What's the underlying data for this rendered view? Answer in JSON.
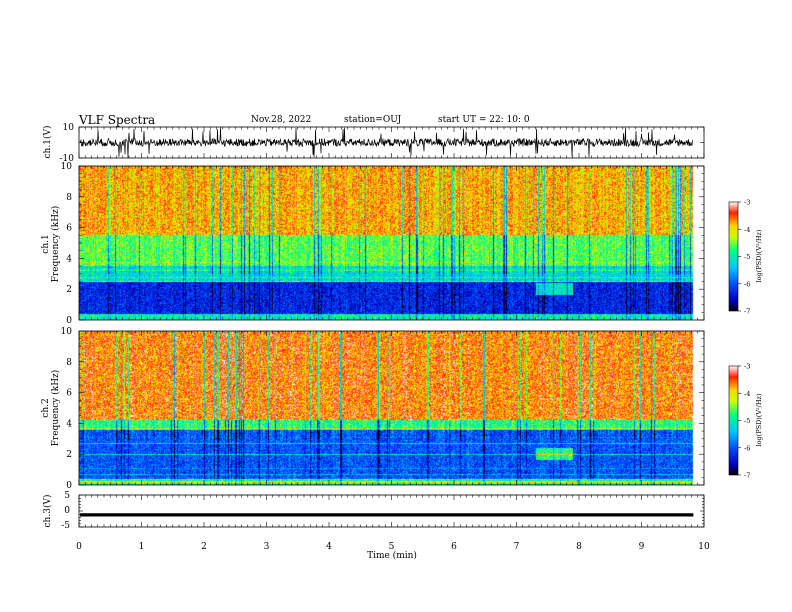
{
  "header": {
    "title": "VLF Spectra",
    "date": "Nov.28, 2022",
    "station": "station=OUJ",
    "start": "start UT =  22: 10: 0"
  },
  "chart_data": [
    {
      "type": "line",
      "panel": "ch1-waveform",
      "ylabel": "ch.1(V)",
      "ylim": [
        -10,
        10
      ],
      "yticks": [
        "10",
        "-10"
      ],
      "xlim": [
        0,
        10
      ],
      "baseline": 0,
      "amplitude_typical": 2.5,
      "data_extent_max": 9.83
    },
    {
      "type": "heatmap",
      "panel": "ch1-spectrogram",
      "ylabel": "ch.1",
      "ylabel2": "Frequency (kHz)",
      "ylim": [
        0,
        10
      ],
      "yticks": [
        "0",
        "2",
        "4",
        "6",
        "8",
        "10"
      ],
      "xlim": [
        0,
        10
      ],
      "data_extent_max": 9.83,
      "bands": [
        {
          "f0": 0.0,
          "f1": 0.4,
          "level": -5.0
        },
        {
          "f0": 0.4,
          "f1": 2.5,
          "level": -6.3
        },
        {
          "f0": 2.5,
          "f1": 3.5,
          "level": -5.2
        },
        {
          "f0": 3.5,
          "f1": 5.5,
          "level": -4.6
        },
        {
          "f0": 5.5,
          "f1": 10.0,
          "level": -3.8
        }
      ],
      "colorbar": {
        "label": "log(PSD)(V²/Hz)",
        "ticks": [
          "-3",
          "-4",
          "-5",
          "-6",
          "-7"
        ],
        "range": [
          -7,
          -3
        ]
      }
    },
    {
      "type": "heatmap",
      "panel": "ch2-spectrogram",
      "ylabel": "ch.2",
      "ylabel2": "Frequency (kHz)",
      "ylim": [
        0,
        10
      ],
      "yticks": [
        "0",
        "2",
        "4",
        "6",
        "8",
        "10"
      ],
      "xlim": [
        0,
        10
      ],
      "data_extent_max": 9.83,
      "bands": [
        {
          "f0": 0.0,
          "f1": 0.4,
          "level": -5.0
        },
        {
          "f0": 0.4,
          "f1": 3.6,
          "level": -6.0
        },
        {
          "f0": 3.6,
          "f1": 4.2,
          "level": -4.8
        },
        {
          "f0": 4.2,
          "f1": 10.0,
          "level": -3.6
        }
      ],
      "colorbar": {
        "label": "log(PSD)(V²/Hz)",
        "ticks": [
          "-3",
          "-4",
          "-5",
          "-6",
          "-7"
        ],
        "range": [
          -7,
          -3
        ]
      }
    },
    {
      "type": "line",
      "panel": "ch3-waveform",
      "ylabel": "ch.3(V)",
      "ylim": [
        -5,
        5
      ],
      "yticks": [
        "5",
        "0",
        "-5"
      ],
      "xlim": [
        0,
        10
      ],
      "xlabel": "Time (min)",
      "xticks": [
        "0",
        "1",
        "2",
        "3",
        "4",
        "5",
        "6",
        "7",
        "8",
        "9",
        "10"
      ],
      "level": -1.2,
      "data_extent_max": 9.83
    }
  ],
  "colors": {
    "colormap": [
      "#000000",
      "#0000c8",
      "#0050ff",
      "#00c8ff",
      "#00ff80",
      "#c8ff00",
      "#ffd200",
      "#ff2000",
      "#ffffff"
    ],
    "line": "#000000"
  }
}
